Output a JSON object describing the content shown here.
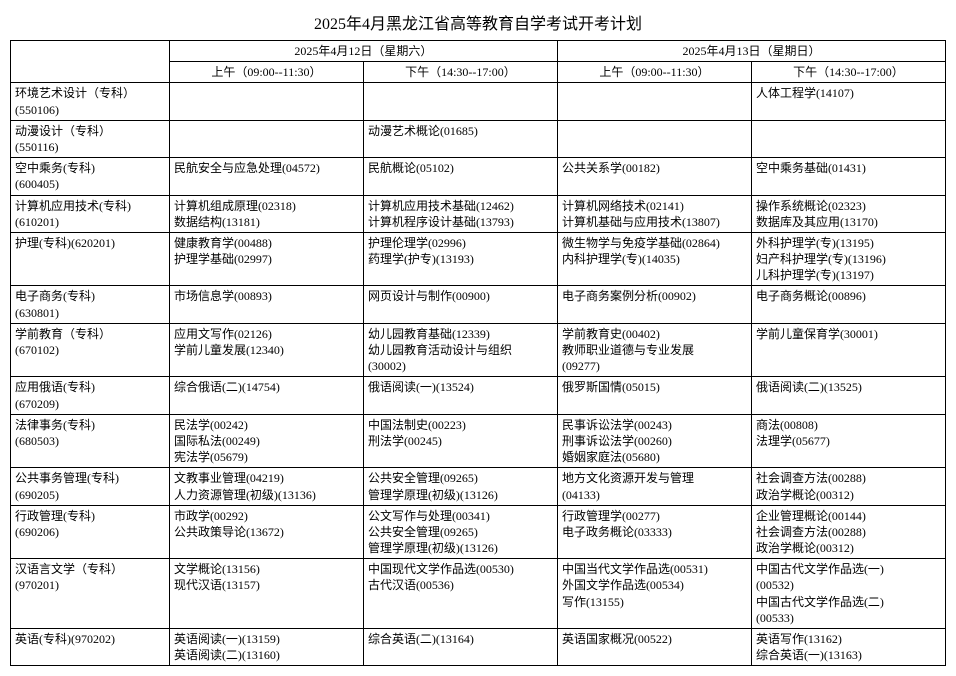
{
  "title": "2025年4月黑龙江省高等教育自学考试开考计划",
  "header": {
    "day1": "2025年4月12日（星期六）",
    "day2": "2025年4月13日（星期日）",
    "am": "上午（09:00--11:30）",
    "pm": "下午（14:30--17:00）"
  },
  "colors": {
    "background": "#ffffff",
    "text": "#000000",
    "border": "#000000"
  },
  "typography": {
    "title_fontsize": 16,
    "body_fontsize": 12,
    "font_family": "SimSun"
  },
  "rows": [
    {
      "major": [
        "环境艺术设计（专科）",
        "(550106)"
      ],
      "d1am": [],
      "d1pm": [],
      "d2am": [],
      "d2pm": [
        "人体工程学(14107)"
      ]
    },
    {
      "major": [
        "动漫设计（专科）",
        "(550116)"
      ],
      "d1am": [],
      "d1pm": [
        "动漫艺术概论(01685)"
      ],
      "d2am": [],
      "d2pm": []
    },
    {
      "major": [
        "空中乘务(专科)",
        "(600405)"
      ],
      "d1am": [
        "民航安全与应急处理(04572)"
      ],
      "d1pm": [
        "民航概论(05102)"
      ],
      "d2am": [
        "公共关系学(00182)"
      ],
      "d2pm": [
        "空中乘务基础(01431)"
      ]
    },
    {
      "major": [
        "计算机应用技术(专科)",
        "(610201)"
      ],
      "d1am": [
        "计算机组成原理(02318)",
        "数据结构(13181)"
      ],
      "d1pm": [
        "计算机应用技术基础(12462)",
        "计算机程序设计基础(13793)"
      ],
      "d2am": [
        "计算机网络技术(02141)",
        "计算机基础与应用技术(13807)"
      ],
      "d2pm": [
        "操作系统概论(02323)",
        "数据库及其应用(13170)"
      ]
    },
    {
      "major": [
        "护理(专科)(620201)"
      ],
      "d1am": [
        "健康教育学(00488)",
        "护理学基础(02997)"
      ],
      "d1pm": [
        "护理伦理学(02996)",
        "药理学(护专)(13193)"
      ],
      "d2am": [
        "微生物学与免疫学基础(02864)",
        "内科护理学(专)(14035)"
      ],
      "d2pm": [
        "外科护理学(专)(13195)",
        "妇产科护理学(专)(13196)",
        "儿科护理学(专)(13197)"
      ]
    },
    {
      "major": [
        "电子商务(专科)",
        "(630801)"
      ],
      "d1am": [
        "市场信息学(00893)"
      ],
      "d1pm": [
        "网页设计与制作(00900)"
      ],
      "d2am": [
        "电子商务案例分析(00902)"
      ],
      "d2pm": [
        "电子商务概论(00896)"
      ]
    },
    {
      "major": [
        "学前教育（专科）",
        "(670102)"
      ],
      "d1am": [
        "应用文写作(02126)",
        "学前儿童发展(12340)"
      ],
      "d1pm": [
        "幼儿园教育基础(12339)",
        "幼儿园教育活动设计与组织",
        "(30002)"
      ],
      "d2am": [
        "学前教育史(00402)",
        "教师职业道德与专业发展",
        "(09277)"
      ],
      "d2pm": [
        "学前儿童保育学(30001)"
      ]
    },
    {
      "major": [
        "应用俄语(专科)",
        "(670209)"
      ],
      "d1am": [
        "综合俄语(二)(14754)"
      ],
      "d1pm": [
        "俄语阅读(一)(13524)"
      ],
      "d2am": [
        "俄罗斯国情(05015)"
      ],
      "d2pm": [
        "俄语阅读(二)(13525)"
      ]
    },
    {
      "major": [
        "法律事务(专科)",
        "(680503)"
      ],
      "d1am": [
        "民法学(00242)",
        "国际私法(00249)",
        "宪法学(05679)"
      ],
      "d1pm": [
        "中国法制史(00223)",
        "刑法学(00245)"
      ],
      "d2am": [
        "民事诉讼法学(00243)",
        "刑事诉讼法学(00260)",
        "婚姻家庭法(05680)"
      ],
      "d2pm": [
        "商法(00808)",
        "法理学(05677)"
      ]
    },
    {
      "major": [
        "公共事务管理(专科)",
        "(690205)"
      ],
      "d1am": [
        "文教事业管理(04219)",
        "人力资源管理(初级)(13136)"
      ],
      "d1pm": [
        "公共安全管理(09265)",
        "管理学原理(初级)(13126)"
      ],
      "d2am": [
        "地方文化资源开发与管理",
        "(04133)"
      ],
      "d2pm": [
        "社会调查方法(00288)",
        "政治学概论(00312)"
      ]
    },
    {
      "major": [
        "行政管理(专科)",
        "(690206)"
      ],
      "d1am": [
        "市政学(00292)",
        "公共政策导论(13672)"
      ],
      "d1pm": [
        "公文写作与处理(00341)",
        "公共安全管理(09265)",
        "管理学原理(初级)(13126)"
      ],
      "d2am": [
        "行政管理学(00277)",
        "电子政务概论(03333)"
      ],
      "d2pm": [
        "企业管理概论(00144)",
        "社会调查方法(00288)",
        "政治学概论(00312)"
      ]
    },
    {
      "major": [
        "汉语言文学（专科）",
        "(970201)"
      ],
      "d1am": [
        "文学概论(13156)",
        "现代汉语(13157)"
      ],
      "d1pm": [
        "中国现代文学作品选(00530)",
        "古代汉语(00536)"
      ],
      "d2am": [
        "中国当代文学作品选(00531)",
        "外国文学作品选(00534)",
        "写作(13155)"
      ],
      "d2pm": [
        "中国古代文学作品选(一)",
        "(00532)",
        "中国古代文学作品选(二)",
        "(00533)"
      ]
    },
    {
      "major": [
        "英语(专科)(970202)"
      ],
      "d1am": [
        "英语阅读(一)(13159)",
        "英语阅读(二)(13160)"
      ],
      "d1pm": [
        "综合英语(二)(13164)"
      ],
      "d2am": [
        "英语国家概况(00522)"
      ],
      "d2pm": [
        "英语写作(13162)",
        "综合英语(一)(13163)"
      ]
    }
  ]
}
